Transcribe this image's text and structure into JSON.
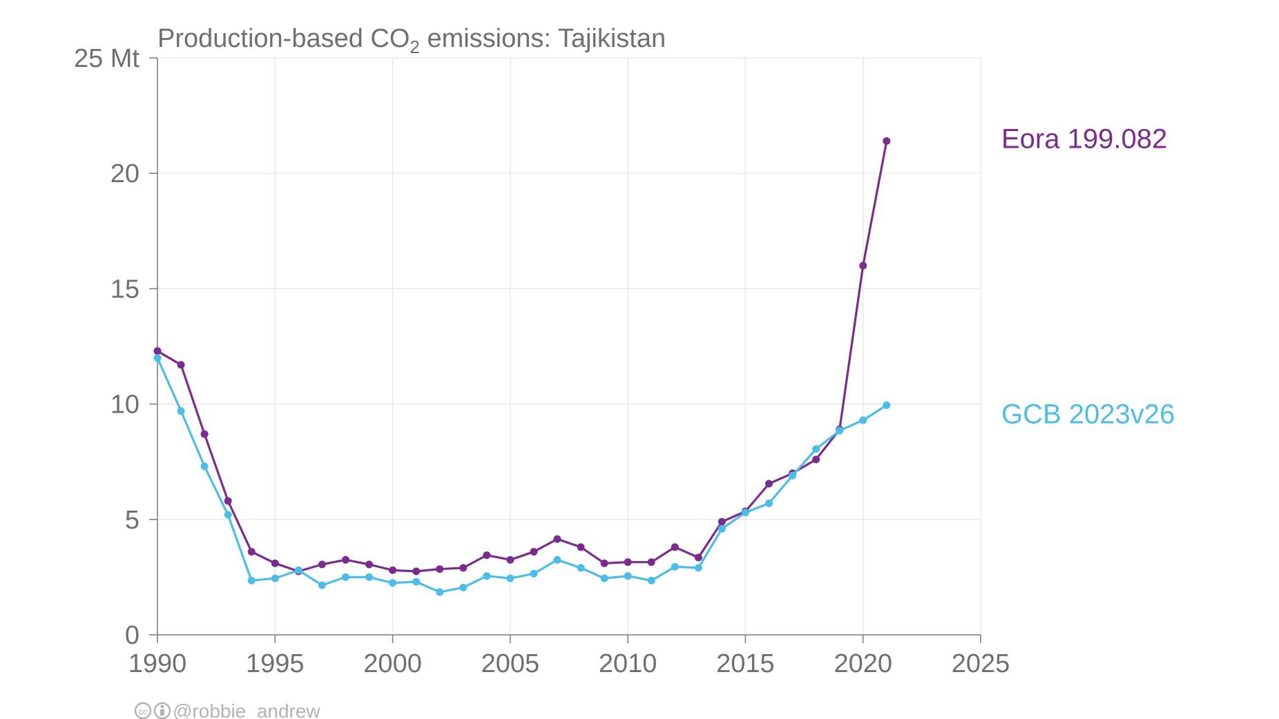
{
  "chart_data": {
    "type": "line",
    "title": {
      "prefix": "Production-based CO",
      "subscript": "2",
      "suffix": " emissions: Tajikistan"
    },
    "y_unit": "Mt",
    "xlim": [
      1990,
      2025
    ],
    "ylim": [
      0,
      25
    ],
    "x_ticks": [
      1990,
      1995,
      2000,
      2005,
      2010,
      2015,
      2020,
      2025
    ],
    "y_ticks": [
      0,
      5,
      10,
      15,
      20,
      25
    ],
    "y_tick_labels": [
      "0",
      "5",
      "10",
      "15",
      "20",
      "25 Mt"
    ],
    "grid": true,
    "legend": "direct labels at right of plot",
    "series": [
      {
        "name": "Eora 199.082",
        "color": "#7b2a8e",
        "x": [
          1990,
          1991,
          1992,
          1993,
          1994,
          1995,
          1996,
          1997,
          1998,
          1999,
          2000,
          2001,
          2002,
          2003,
          2004,
          2005,
          2006,
          2007,
          2008,
          2009,
          2010,
          2011,
          2012,
          2013,
          2014,
          2015,
          2016,
          2017,
          2018,
          2019,
          2020,
          2021
        ],
        "values": [
          12.3,
          11.7,
          8.7,
          5.8,
          3.6,
          3.1,
          2.75,
          3.05,
          3.25,
          3.05,
          2.8,
          2.75,
          2.85,
          2.9,
          3.45,
          3.25,
          3.6,
          4.15,
          3.8,
          3.1,
          3.15,
          3.15,
          3.8,
          3.35,
          4.9,
          5.35,
          6.55,
          7.0,
          7.6,
          8.9,
          16.0,
          21.4
        ]
      },
      {
        "name": "GCB 2023v26",
        "color": "#4bbde8",
        "x": [
          1990,
          1991,
          1992,
          1993,
          1994,
          1995,
          1996,
          1997,
          1998,
          1999,
          2000,
          2001,
          2002,
          2003,
          2004,
          2005,
          2006,
          2007,
          2008,
          2009,
          2010,
          2011,
          2012,
          2013,
          2014,
          2015,
          2016,
          2017,
          2018,
          2019,
          2020,
          2021
        ],
        "values": [
          12.0,
          9.7,
          7.3,
          5.2,
          2.35,
          2.45,
          2.8,
          2.15,
          2.5,
          2.5,
          2.25,
          2.3,
          1.85,
          2.05,
          2.55,
          2.45,
          2.65,
          3.25,
          2.9,
          2.45,
          2.55,
          2.35,
          2.95,
          2.9,
          4.6,
          5.3,
          5.7,
          6.9,
          8.05,
          8.85,
          9.3,
          9.95
        ]
      }
    ]
  },
  "credit": {
    "icons": [
      "creative-commons-icon",
      "attribution-icon"
    ],
    "handle": "@robbie_andrew"
  }
}
